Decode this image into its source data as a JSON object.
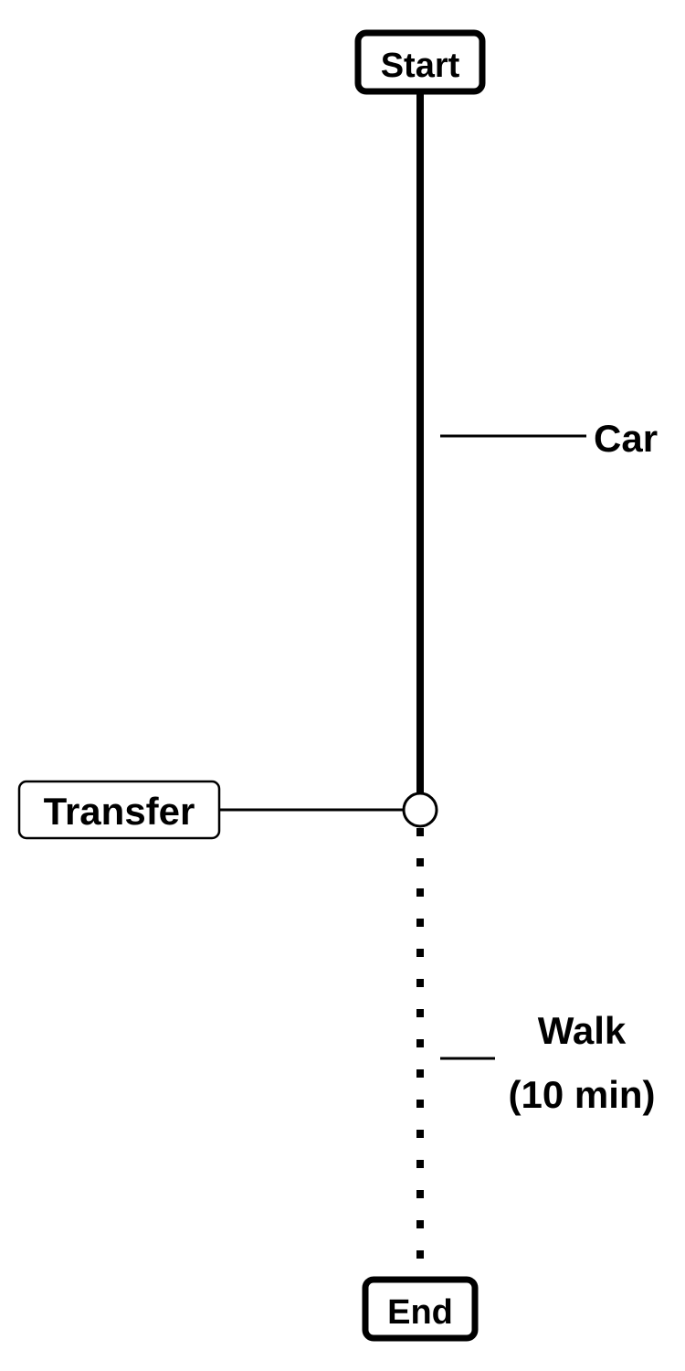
{
  "route": {
    "start": {
      "label": "Start"
    },
    "end": {
      "label": "End"
    },
    "transfer": {
      "label": "Transfer"
    },
    "segments": [
      {
        "mode_label": "Car",
        "line_style": "solid"
      },
      {
        "mode_label_line1": "Walk",
        "mode_label_line2": "(10 min)",
        "line_style": "dotted"
      }
    ]
  },
  "colors": {
    "stroke": "#000000",
    "background": "#ffffff"
  }
}
